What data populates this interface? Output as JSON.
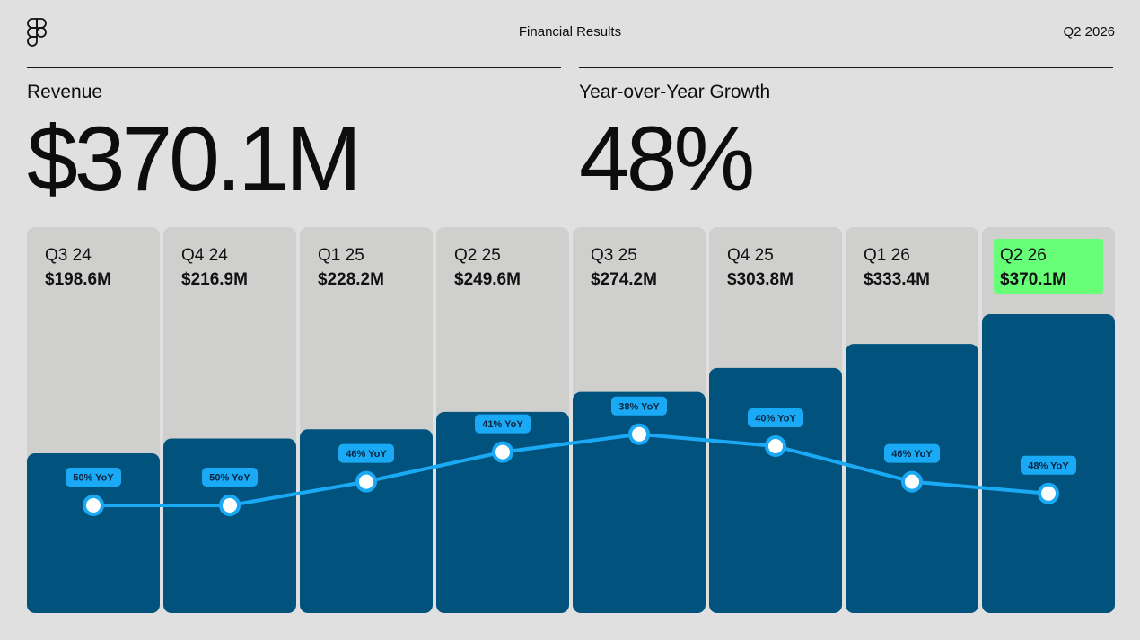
{
  "header": {
    "title": "Financial Results",
    "quarter": "Q2 2026",
    "logo_icon": "figma-logo-icon"
  },
  "metrics": {
    "revenue": {
      "label": "Revenue",
      "value": "$370.1M"
    },
    "growth": {
      "label": "Year-over-Year Growth",
      "value": "48%"
    }
  },
  "colors": {
    "background": "#e0e0e0",
    "column_bg": "#cfd0ce",
    "bar": "#02527e",
    "line": "#1aaaf5",
    "highlight": "#66ff77"
  },
  "chart_data": {
    "type": "bar",
    "categories": [
      "Q3 24",
      "Q4 24",
      "Q1 25",
      "Q2 25",
      "Q3 25",
      "Q4 25",
      "Q1 26",
      "Q2 26"
    ],
    "value_labels": [
      "$198.6M",
      "$216.9M",
      "$228.2M",
      "$249.6M",
      "$274.2M",
      "$303.8M",
      "$333.4M",
      "$370.1M"
    ],
    "values": [
      198.6,
      216.9,
      228.2,
      249.6,
      274.2,
      303.8,
      333.4,
      370.1
    ],
    "unit": "$M",
    "series": [
      {
        "values": [
          198.6,
          216.9,
          228.2,
          249.6,
          274.2,
          303.8,
          333.4,
          370.1
        ]
      },
      {
        "values": [
          50,
          50,
          46,
          41,
          38,
          40,
          46,
          48
        ]
      }
    ],
    "yoy_labels": [
      "50% YoY",
      "50% YoY",
      "46% YoY",
      "41% YoY",
      "38% YoY",
      "40% YoY",
      "46% YoY",
      "48% YoY"
    ],
    "highlighted_category": "Q2 26",
    "grid": false,
    "legend": "none"
  }
}
